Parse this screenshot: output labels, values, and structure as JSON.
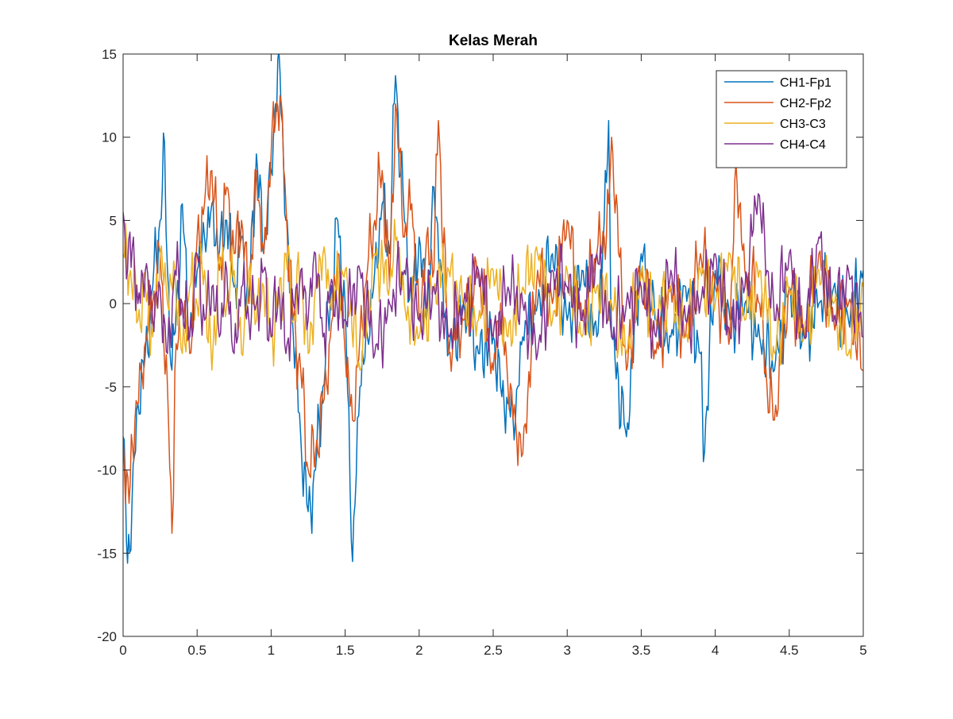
{
  "chart_data": {
    "type": "line",
    "title": "Kelas Merah",
    "xlabel": "",
    "ylabel": "",
    "xlim": [
      0,
      5
    ],
    "ylim": [
      -20,
      15
    ],
    "xticks": [
      0,
      0.5,
      1,
      1.5,
      2,
      2.5,
      3,
      3.5,
      4,
      4.5,
      5
    ],
    "xtick_labels": [
      "0",
      "0.5",
      "1",
      "1.5",
      "2",
      "2.5",
      "3",
      "3.5",
      "4",
      "4.5",
      "5"
    ],
    "yticks": [
      -20,
      -15,
      -10,
      -5,
      0,
      5,
      10,
      15
    ],
    "ytick_labels": [
      "-20",
      "-15",
      "-10",
      "-5",
      "0",
      "5",
      "10",
      "15"
    ],
    "grid": false,
    "legend_position": "top-right",
    "series": [
      {
        "name": "CH1-Fp1",
        "color": "#0072BD",
        "x": [
          0,
          0.03,
          0.06,
          0.1,
          0.15,
          0.2,
          0.25,
          0.28,
          0.3,
          0.33,
          0.36,
          0.4,
          0.45,
          0.5,
          0.55,
          0.6,
          0.65,
          0.7,
          0.75,
          0.8,
          0.85,
          0.9,
          0.95,
          1.0,
          1.03,
          1.06,
          1.1,
          1.15,
          1.2,
          1.25,
          1.3,
          1.35,
          1.4,
          1.45,
          1.5,
          1.55,
          1.6,
          1.65,
          1.7,
          1.75,
          1.8,
          1.84,
          1.9,
          1.95,
          2.0,
          2.05,
          2.1,
          2.15,
          2.2,
          2.3,
          2.4,
          2.5,
          2.55,
          2.6,
          2.65,
          2.7,
          2.8,
          2.9,
          3.0,
          3.1,
          3.2,
          3.25,
          3.28,
          3.3,
          3.4,
          3.5,
          3.6,
          3.7,
          3.8,
          3.9,
          3.92,
          4.0,
          4.1,
          4.2,
          4.3,
          4.4,
          4.5,
          4.6,
          4.7,
          4.8,
          4.9,
          5.0
        ],
        "y": [
          -8,
          -15.6,
          -12,
          -6,
          -3,
          1,
          5,
          9.7,
          2,
          -4,
          0,
          6,
          -2,
          2,
          4,
          6,
          3,
          5,
          1,
          4,
          0,
          9,
          3,
          8,
          12,
          13.9,
          5,
          -2,
          -8,
          -12.5,
          -10,
          -5,
          0,
          5,
          0,
          -15.5,
          -5,
          -2,
          2,
          6,
          3,
          13.7,
          5,
          0,
          4,
          -1,
          7,
          2,
          -3,
          0,
          -3,
          -2,
          -5,
          -6,
          -7,
          -2,
          0,
          3,
          -1,
          2,
          -2,
          5,
          11,
          -2,
          -8,
          3,
          -1,
          -2,
          1,
          -3,
          -9.5,
          2,
          -1,
          0,
          -2,
          -4,
          1,
          -2,
          0,
          1,
          -1,
          2
        ]
      },
      {
        "name": "CH2-Fp2",
        "color": "#D95319",
        "x": [
          0,
          0.04,
          0.08,
          0.12,
          0.16,
          0.2,
          0.25,
          0.3,
          0.33,
          0.35,
          0.4,
          0.45,
          0.5,
          0.55,
          0.6,
          0.65,
          0.7,
          0.75,
          0.8,
          0.85,
          0.9,
          0.95,
          1.0,
          1.03,
          1.06,
          1.1,
          1.15,
          1.2,
          1.25,
          1.3,
          1.35,
          1.4,
          1.45,
          1.5,
          1.55,
          1.6,
          1.65,
          1.7,
          1.75,
          1.8,
          1.84,
          1.9,
          1.95,
          2.0,
          2.05,
          2.1,
          2.13,
          2.2,
          2.3,
          2.4,
          2.5,
          2.55,
          2.6,
          2.65,
          2.7,
          2.8,
          2.9,
          3.0,
          3.1,
          3.2,
          3.25,
          3.28,
          3.3,
          3.4,
          3.5,
          3.6,
          3.7,
          3.8,
          3.9,
          4.0,
          4.1,
          4.14,
          4.2,
          4.3,
          4.35,
          4.4,
          4.5,
          4.6,
          4.7,
          4.8,
          4.9,
          5.0
        ],
        "y": [
          -8,
          -12,
          -7,
          -4,
          -2,
          0,
          3,
          -5,
          -13.8,
          -4,
          0,
          -3,
          4,
          6,
          8,
          2,
          7,
          3,
          5,
          0,
          8,
          3,
          9,
          11,
          12.5,
          6,
          -1,
          -4,
          -10,
          -9,
          -6,
          -2,
          3,
          -3,
          -7,
          -2,
          2,
          5,
          8,
          1,
          12,
          4,
          6,
          -1,
          4,
          2,
          11,
          -3,
          -1,
          2,
          -4,
          0,
          -5,
          -7,
          -9,
          2,
          0,
          5,
          -1,
          3,
          4,
          6,
          10,
          -4,
          2,
          -3,
          1,
          -2,
          3,
          1,
          -2,
          8.5,
          2,
          0,
          -5,
          -7,
          1,
          -2,
          3,
          -1,
          0,
          -4
        ]
      },
      {
        "name": "CH3-C3",
        "color": "#EDB120",
        "x": [
          0,
          0.05,
          0.1,
          0.15,
          0.2,
          0.25,
          0.3,
          0.35,
          0.4,
          0.45,
          0.5,
          0.55,
          0.6,
          0.65,
          0.7,
          0.75,
          0.8,
          0.85,
          0.9,
          0.95,
          1.0,
          1.05,
          1.1,
          1.15,
          1.2,
          1.25,
          1.3,
          1.35,
          1.4,
          1.5,
          1.6,
          1.7,
          1.8,
          1.85,
          1.9,
          2.0,
          2.1,
          2.2,
          2.3,
          2.4,
          2.5,
          2.6,
          2.7,
          2.8,
          2.9,
          3.0,
          3.1,
          3.2,
          3.3,
          3.4,
          3.5,
          3.6,
          3.7,
          3.8,
          3.9,
          4.0,
          4.1,
          4.2,
          4.3,
          4.4,
          4.5,
          4.6,
          4.7,
          4.8,
          4.9,
          5.0
        ],
        "y": [
          3,
          2,
          -1,
          1,
          -2,
          3,
          0,
          2,
          -3,
          1,
          0,
          2,
          -4,
          3,
          0,
          2,
          -3,
          2,
          -1,
          1,
          -2,
          0,
          3,
          -1,
          2,
          -3,
          1,
          3,
          0,
          2,
          -4,
          3,
          1,
          4,
          0,
          -2,
          1,
          2,
          0,
          -1,
          2,
          -2,
          1,
          3,
          -1,
          2,
          -2,
          1,
          0,
          -3,
          2,
          -1,
          1,
          -2,
          2,
          0,
          3,
          -1,
          2,
          -3,
          1,
          -2,
          2,
          0,
          -3,
          1
        ]
      },
      {
        "name": "CH4-C4",
        "color": "#7E2F8E",
        "x": [
          0,
          0.03,
          0.07,
          0.1,
          0.15,
          0.2,
          0.25,
          0.3,
          0.35,
          0.4,
          0.45,
          0.5,
          0.55,
          0.6,
          0.65,
          0.7,
          0.75,
          0.8,
          0.85,
          0.9,
          0.95,
          1.0,
          1.05,
          1.1,
          1.15,
          1.2,
          1.25,
          1.3,
          1.35,
          1.4,
          1.5,
          1.6,
          1.7,
          1.8,
          1.9,
          2.0,
          2.1,
          2.2,
          2.3,
          2.4,
          2.5,
          2.6,
          2.7,
          2.8,
          2.9,
          3.0,
          3.1,
          3.2,
          3.3,
          3.4,
          3.5,
          3.6,
          3.7,
          3.8,
          3.9,
          4.0,
          4.1,
          4.2,
          4.29,
          4.35,
          4.4,
          4.5,
          4.6,
          4.7,
          4.8,
          4.9,
          5.0
        ],
        "y": [
          5.5,
          2,
          4,
          0,
          2,
          -1,
          1,
          -3,
          2,
          0,
          -2,
          3,
          -1,
          1,
          -2,
          2,
          -3,
          1,
          -1,
          0,
          2,
          -2,
          1,
          -3,
          0,
          2,
          -1,
          3,
          -2,
          1,
          -1,
          2,
          -3,
          0,
          2,
          -1,
          1,
          -2,
          0,
          2,
          -2,
          1,
          0,
          -3,
          2,
          1,
          -1,
          3,
          -2,
          0,
          1,
          -2,
          2,
          -1,
          0,
          3,
          -2,
          1,
          6.6,
          2,
          -1,
          3,
          -2,
          4,
          -1,
          2,
          -2
        ]
      }
    ]
  }
}
